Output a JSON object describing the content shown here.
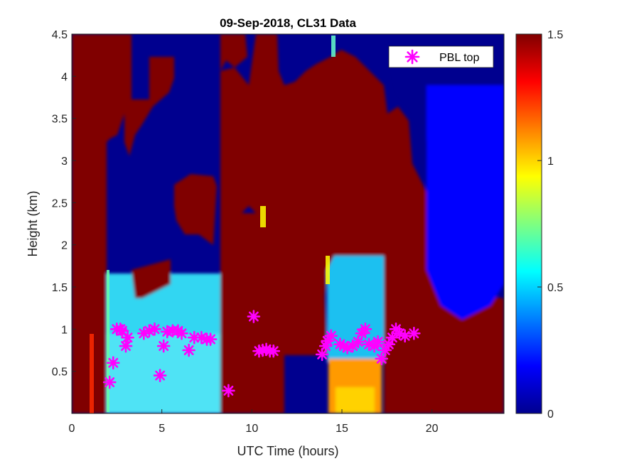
{
  "chart_data": {
    "type": "heatmap",
    "title": "09-Sep-2018, CL31 Data",
    "xlabel": "UTC Time (hours)",
    "ylabel": "Height (km)",
    "xlim": [
      0,
      24
    ],
    "ylim": [
      0,
      4.5
    ],
    "xticks": [
      "0",
      "5",
      "10",
      "15",
      "20"
    ],
    "yticks": [
      "0.5",
      "1",
      "1.5",
      "2",
      "2.5",
      "3",
      "3.5",
      "4",
      "4.5"
    ],
    "colorbar": {
      "colormap": "jet",
      "clim": [
        0,
        1.5
      ],
      "ticks": [
        "0",
        "0.5",
        "1",
        "1.5"
      ]
    },
    "grid": false,
    "legend": {
      "position": "top-right",
      "entries": [
        "PBL top"
      ]
    },
    "series": [
      {
        "name": "PBL top",
        "type": "scatter",
        "marker": "asterisk",
        "color": "#ff00ff",
        "points": [
          [
            2.1,
            0.37
          ],
          [
            2.3,
            0.6
          ],
          [
            2.5,
            1.0
          ],
          [
            2.7,
            1.0
          ],
          [
            2.8,
            0.98
          ],
          [
            3.0,
            0.8
          ],
          [
            3.1,
            0.9
          ],
          [
            4.0,
            0.95
          ],
          [
            4.3,
            0.98
          ],
          [
            4.6,
            1.0
          ],
          [
            4.9,
            0.45
          ],
          [
            5.1,
            0.8
          ],
          [
            5.3,
            0.97
          ],
          [
            5.6,
            0.98
          ],
          [
            5.9,
            0.98
          ],
          [
            6.1,
            0.95
          ],
          [
            6.5,
            0.75
          ],
          [
            6.8,
            0.9
          ],
          [
            7.2,
            0.9
          ],
          [
            7.5,
            0.88
          ],
          [
            7.7,
            0.88
          ],
          [
            8.7,
            0.27
          ],
          [
            10.1,
            1.15
          ],
          [
            10.4,
            0.74
          ],
          [
            10.6,
            0.75
          ],
          [
            10.8,
            0.76
          ],
          [
            11.0,
            0.74
          ],
          [
            11.2,
            0.74
          ],
          [
            13.9,
            0.7
          ],
          [
            14.1,
            0.8
          ],
          [
            14.2,
            0.86
          ],
          [
            14.4,
            0.92
          ],
          [
            14.9,
            0.82
          ],
          [
            15.1,
            0.8
          ],
          [
            15.3,
            0.78
          ],
          [
            15.6,
            0.8
          ],
          [
            15.9,
            0.85
          ],
          [
            16.1,
            0.95
          ],
          [
            16.3,
            1.0
          ],
          [
            16.5,
            0.82
          ],
          [
            16.8,
            0.8
          ],
          [
            17.0,
            0.85
          ],
          [
            17.2,
            0.65
          ],
          [
            17.4,
            0.75
          ],
          [
            17.6,
            0.82
          ],
          [
            17.8,
            0.9
          ],
          [
            18.0,
            1.0
          ],
          [
            18.2,
            0.95
          ],
          [
            18.5,
            0.92
          ],
          [
            19.0,
            0.95
          ]
        ]
      }
    ]
  }
}
